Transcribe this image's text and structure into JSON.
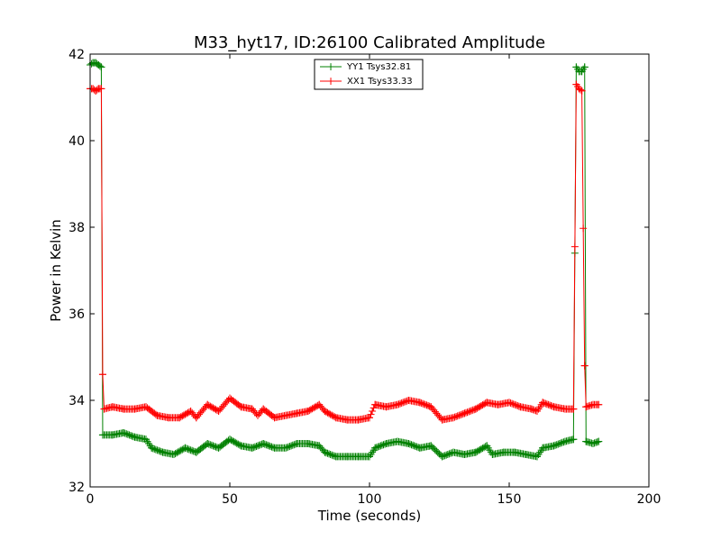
{
  "chart_data": {
    "type": "line",
    "title": "M33_hyt17, ID:26100 Calibrated Amplitude",
    "xlabel": "Time (seconds)",
    "ylabel": "Power in Kelvin",
    "xlim": [
      0,
      200
    ],
    "ylim": [
      32,
      42
    ],
    "xticks": [
      0,
      50,
      100,
      150,
      200
    ],
    "yticks": [
      32,
      34,
      36,
      38,
      40,
      42
    ],
    "grid": false,
    "legend": "top-center",
    "marker": "+",
    "series": [
      {
        "name": "YY1 Tsys32.81",
        "color": "#008000",
        "keypoints": [
          [
            0,
            41.75
          ],
          [
            1,
            41.8
          ],
          [
            2,
            41.8
          ],
          [
            3,
            41.75
          ],
          [
            4,
            41.7
          ],
          [
            4.5,
            33.2
          ],
          [
            8,
            33.2
          ],
          [
            12,
            33.25
          ],
          [
            16,
            33.15
          ],
          [
            20,
            33.1
          ],
          [
            22,
            32.9
          ],
          [
            26,
            32.8
          ],
          [
            30,
            32.75
          ],
          [
            34,
            32.9
          ],
          [
            38,
            32.8
          ],
          [
            42,
            33.0
          ],
          [
            46,
            32.9
          ],
          [
            50,
            33.1
          ],
          [
            54,
            32.95
          ],
          [
            58,
            32.9
          ],
          [
            62,
            33.0
          ],
          [
            66,
            32.9
          ],
          [
            70,
            32.9
          ],
          [
            74,
            33.0
          ],
          [
            78,
            33.0
          ],
          [
            82,
            32.95
          ],
          [
            84,
            32.8
          ],
          [
            88,
            32.7
          ],
          [
            92,
            32.7
          ],
          [
            96,
            32.7
          ],
          [
            100,
            32.7
          ],
          [
            102,
            32.9
          ],
          [
            106,
            33.0
          ],
          [
            110,
            33.05
          ],
          [
            114,
            33.0
          ],
          [
            118,
            32.9
          ],
          [
            122,
            32.95
          ],
          [
            126,
            32.7
          ],
          [
            130,
            32.8
          ],
          [
            134,
            32.75
          ],
          [
            138,
            32.8
          ],
          [
            142,
            32.95
          ],
          [
            144,
            32.75
          ],
          [
            148,
            32.8
          ],
          [
            152,
            32.8
          ],
          [
            156,
            32.75
          ],
          [
            160,
            32.7
          ],
          [
            162,
            32.9
          ],
          [
            166,
            32.95
          ],
          [
            170,
            33.05
          ],
          [
            173,
            33.1
          ],
          [
            174,
            41.7
          ],
          [
            175,
            41.6
          ],
          [
            176,
            41.6
          ],
          [
            177,
            41.7
          ],
          [
            177.5,
            33.05
          ],
          [
            180,
            33.0
          ],
          [
            182,
            33.05
          ]
        ]
      },
      {
        "name": "XX1 Tsys33.33",
        "color": "#ff0000",
        "keypoints": [
          [
            0,
            41.2
          ],
          [
            1,
            41.2
          ],
          [
            2,
            41.15
          ],
          [
            3,
            41.2
          ],
          [
            4,
            41.2
          ],
          [
            4.5,
            34.6
          ],
          [
            5,
            33.8
          ],
          [
            8,
            33.85
          ],
          [
            12,
            33.8
          ],
          [
            16,
            33.8
          ],
          [
            20,
            33.85
          ],
          [
            24,
            33.65
          ],
          [
            28,
            33.6
          ],
          [
            32,
            33.6
          ],
          [
            36,
            33.75
          ],
          [
            38,
            33.6
          ],
          [
            42,
            33.9
          ],
          [
            46,
            33.75
          ],
          [
            50,
            34.05
          ],
          [
            54,
            33.85
          ],
          [
            58,
            33.8
          ],
          [
            60,
            33.65
          ],
          [
            62,
            33.8
          ],
          [
            66,
            33.6
          ],
          [
            70,
            33.65
          ],
          [
            74,
            33.7
          ],
          [
            78,
            33.75
          ],
          [
            82,
            33.9
          ],
          [
            84,
            33.75
          ],
          [
            88,
            33.6
          ],
          [
            92,
            33.55
          ],
          [
            96,
            33.55
          ],
          [
            100,
            33.6
          ],
          [
            102,
            33.9
          ],
          [
            106,
            33.85
          ],
          [
            110,
            33.9
          ],
          [
            114,
            34.0
          ],
          [
            118,
            33.95
          ],
          [
            122,
            33.85
          ],
          [
            126,
            33.55
          ],
          [
            130,
            33.6
          ],
          [
            134,
            33.7
          ],
          [
            138,
            33.8
          ],
          [
            142,
            33.95
          ],
          [
            146,
            33.9
          ],
          [
            150,
            33.95
          ],
          [
            154,
            33.85
          ],
          [
            158,
            33.8
          ],
          [
            160,
            33.75
          ],
          [
            162,
            33.95
          ],
          [
            166,
            33.85
          ],
          [
            170,
            33.8
          ],
          [
            173,
            33.8
          ],
          [
            174,
            41.3
          ],
          [
            175,
            41.2
          ],
          [
            176,
            41.15
          ],
          [
            177,
            34.8
          ],
          [
            177.5,
            33.85
          ],
          [
            180,
            33.9
          ],
          [
            182,
            33.9
          ]
        ]
      }
    ]
  }
}
